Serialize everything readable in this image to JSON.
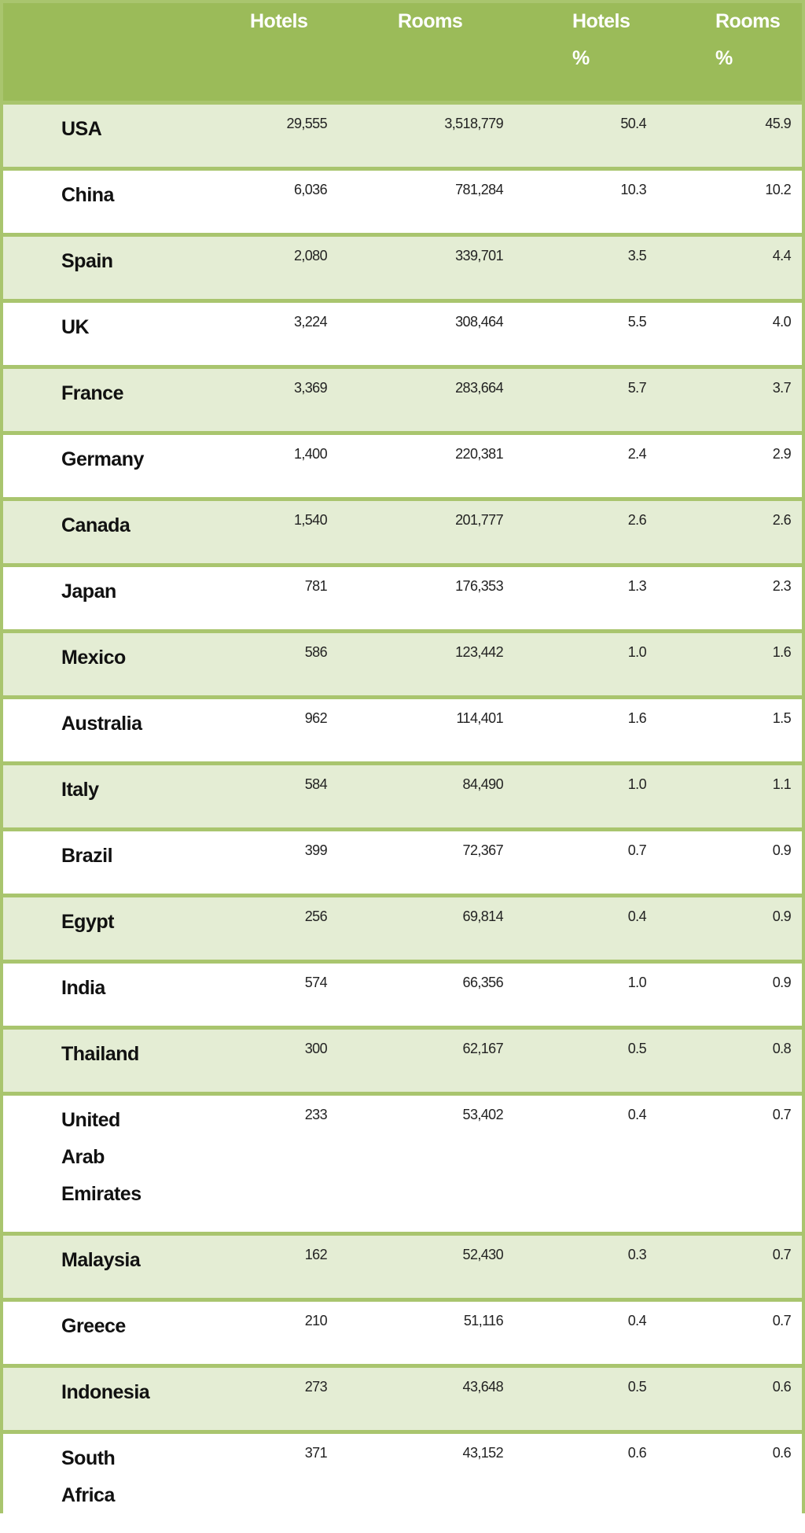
{
  "colors": {
    "header_bg": "#9bbb59",
    "border": "#a9c56e",
    "band": "#e4edd4"
  },
  "table": {
    "headers": [
      "",
      "Hotels",
      "Rooms",
      "Hotels %",
      "Rooms %"
    ],
    "rows": [
      [
        "USA",
        "29,555",
        "3,518,779",
        "50.4",
        "45.9"
      ],
      [
        "China",
        "6,036",
        "781,284",
        "10.3",
        "10.2"
      ],
      [
        "Spain",
        "2,080",
        "339,701",
        "3.5",
        "4.4"
      ],
      [
        "UK",
        "3,224",
        "308,464",
        "5.5",
        "4.0"
      ],
      [
        "France",
        "3,369",
        "283,664",
        "5.7",
        "3.7"
      ],
      [
        "Germany",
        "1,400",
        "220,381",
        "2.4",
        "2.9"
      ],
      [
        "Canada",
        "1,540",
        "201,777",
        "2.6",
        "2.6"
      ],
      [
        "Japan",
        "781",
        "176,353",
        "1.3",
        "2.3"
      ],
      [
        "Mexico",
        "586",
        "123,442",
        "1.0",
        "1.6"
      ],
      [
        "Australia",
        "962",
        "114,401",
        "1.6",
        "1.5"
      ],
      [
        "Italy",
        "584",
        "84,490",
        "1.0",
        "1.1"
      ],
      [
        "Brazil",
        "399",
        "72,367",
        "0.7",
        "0.9"
      ],
      [
        "Egypt",
        "256",
        "69,814",
        "0.4",
        "0.9"
      ],
      [
        "India",
        "574",
        "66,356",
        "1.0",
        "0.9"
      ],
      [
        "Thailand",
        "300",
        "62,167",
        "0.5",
        "0.8"
      ],
      [
        "United Arab Emirates",
        "233",
        "53,402",
        "0.4",
        "0.7"
      ],
      [
        "Malaysia",
        "162",
        "52,430",
        "0.3",
        "0.7"
      ],
      [
        "Greece",
        "210",
        "51,116",
        "0.4",
        "0.7"
      ],
      [
        "Indonesia",
        "273",
        "43,648",
        "0.5",
        "0.6"
      ],
      [
        "South Africa",
        "371",
        "43,152",
        "0.6",
        "0.6"
      ]
    ]
  }
}
